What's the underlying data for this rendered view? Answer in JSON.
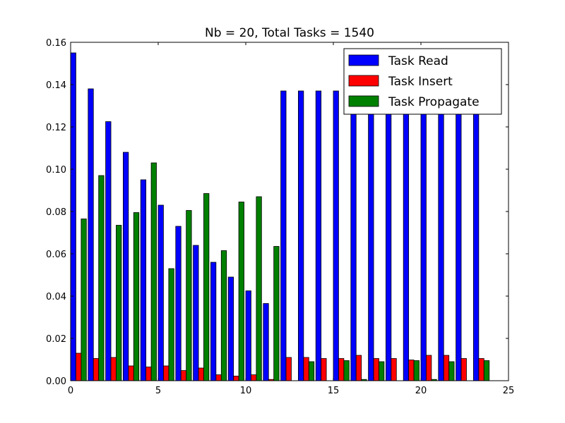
{
  "chart_data": {
    "type": "bar",
    "title": "Nb = 20, Total Tasks = 1540",
    "xlabel": "",
    "ylabel": "",
    "xlim": [
      0,
      25
    ],
    "ylim": [
      0,
      0.16
    ],
    "xticks": [
      0,
      5,
      10,
      15,
      20,
      25
    ],
    "xtick_labels": [
      "0",
      "5",
      "10",
      "15",
      "20",
      "25"
    ],
    "yticks": [
      0.0,
      0.02,
      0.04,
      0.06,
      0.08,
      0.1,
      0.12,
      0.14,
      0.16
    ],
    "ytick_labels": [
      "0.00",
      "0.02",
      "0.04",
      "0.06",
      "0.08",
      "0.10",
      "0.12",
      "0.14",
      "0.16"
    ],
    "grid": false,
    "legend_position": "top-right",
    "bar_width": 0.3,
    "x": [
      0,
      1,
      2,
      3,
      4,
      5,
      6,
      7,
      8,
      9,
      10,
      11,
      12,
      13,
      14,
      15,
      16,
      17,
      18,
      19,
      20,
      21,
      22,
      23
    ],
    "series": [
      {
        "name": "Task Read",
        "color": "#0000ff",
        "values": [
          0.155,
          0.138,
          0.1225,
          0.108,
          0.095,
          0.083,
          0.073,
          0.064,
          0.056,
          0.049,
          0.0425,
          0.0365,
          0.137,
          0.137,
          0.137,
          0.137,
          0.137,
          0.137,
          0.137,
          0.137,
          0.137,
          0.137,
          0.137,
          0.137
        ]
      },
      {
        "name": "Task Insert",
        "color": "#ff0000",
        "values": [
          0.013,
          0.0105,
          0.011,
          0.007,
          0.0065,
          0.007,
          0.0048,
          0.006,
          0.0028,
          0.0022,
          0.0028,
          0.0006,
          0.011,
          0.011,
          0.0105,
          0.0105,
          0.012,
          0.0105,
          0.0105,
          0.0098,
          0.012,
          0.012,
          0.0105,
          0.0105
        ]
      },
      {
        "name": "Task Propagate",
        "color": "#008000",
        "values": [
          0.0765,
          0.097,
          0.0735,
          0.0795,
          0.103,
          0.053,
          0.0805,
          0.0885,
          0.0615,
          0.0845,
          0.087,
          0.0635,
          0.0,
          0.009,
          0.0,
          0.0095,
          0.0006,
          0.009,
          0.0,
          0.0095,
          0.0006,
          0.009,
          0.0,
          0.0095
        ]
      }
    ]
  }
}
